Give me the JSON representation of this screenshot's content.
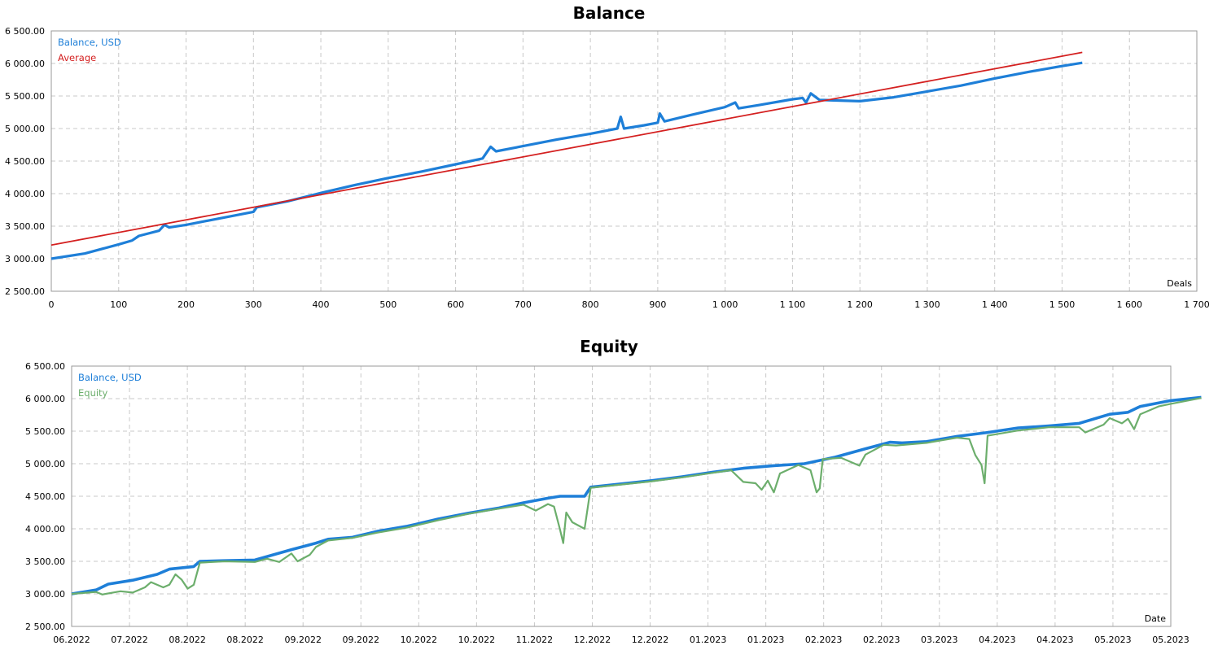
{
  "chart_data": [
    {
      "type": "line",
      "title": "Balance",
      "xlabel": "Deals",
      "ylabel": "",
      "xlim": [
        0,
        1700
      ],
      "ylim": [
        2500,
        6500
      ],
      "x_ticks": [
        "0",
        "100",
        "200",
        "300",
        "400",
        "500",
        "600",
        "700",
        "800",
        "900",
        "1 000",
        "1 100",
        "1 200",
        "1 300",
        "1 400",
        "1 500",
        "1 600",
        "1 700"
      ],
      "y_ticks": [
        "2 500.00",
        "3 000.00",
        "3 500.00",
        "4 000.00",
        "4 500.00",
        "5 000.00",
        "5 500.00",
        "6 000.00",
        "6 500.00"
      ],
      "grid": true,
      "legend_position": "top-left",
      "series": [
        {
          "name": "Balance, USD",
          "color": "#1e7fd8",
          "points": [
            [
              0,
              3000
            ],
            [
              50,
              3080
            ],
            [
              100,
              3220
            ],
            [
              120,
              3280
            ],
            [
              130,
              3350
            ],
            [
              160,
              3430
            ],
            [
              168,
              3520
            ],
            [
              175,
              3480
            ],
            [
              200,
              3520
            ],
            [
              250,
              3620
            ],
            [
              300,
              3720
            ],
            [
              305,
              3790
            ],
            [
              350,
              3880
            ],
            [
              400,
              4010
            ],
            [
              450,
              4130
            ],
            [
              500,
              4240
            ],
            [
              550,
              4340
            ],
            [
              600,
              4450
            ],
            [
              640,
              4540
            ],
            [
              652,
              4720
            ],
            [
              660,
              4650
            ],
            [
              700,
              4730
            ],
            [
              750,
              4830
            ],
            [
              800,
              4920
            ],
            [
              840,
              5000
            ],
            [
              845,
              5180
            ],
            [
              850,
              5000
            ],
            [
              880,
              5050
            ],
            [
              900,
              5090
            ],
            [
              903,
              5230
            ],
            [
              910,
              5110
            ],
            [
              950,
              5210
            ],
            [
              1000,
              5330
            ],
            [
              1015,
              5400
            ],
            [
              1020,
              5310
            ],
            [
              1050,
              5360
            ],
            [
              1100,
              5450
            ],
            [
              1115,
              5470
            ],
            [
              1120,
              5400
            ],
            [
              1127,
              5540
            ],
            [
              1140,
              5440
            ],
            [
              1200,
              5420
            ],
            [
              1250,
              5480
            ],
            [
              1300,
              5570
            ],
            [
              1350,
              5660
            ],
            [
              1400,
              5770
            ],
            [
              1450,
              5870
            ],
            [
              1500,
              5960
            ],
            [
              1530,
              6010
            ]
          ]
        },
        {
          "name": "Average",
          "color": "#d42020",
          "points": [
            [
              0,
              3210
            ],
            [
              1530,
              6170
            ]
          ]
        }
      ]
    },
    {
      "type": "line",
      "title": "Equity",
      "xlabel": "Date",
      "ylabel": "",
      "xlim": [
        0,
        18
      ],
      "ylim": [
        2500,
        6500
      ],
      "x_ticks": [
        "06.2022",
        "07.2022",
        "08.2022",
        "08.2022",
        "09.2022",
        "09.2022",
        "10.2022",
        "10.2022",
        "11.2022",
        "12.2022",
        "12.2022",
        "01.2023",
        "01.2023",
        "02.2023",
        "02.2023",
        "03.2023",
        "04.2023",
        "04.2023",
        "05.2023",
        "05.2023"
      ],
      "y_ticks": [
        "2 500.00",
        "3 000.00",
        "3 500.00",
        "4 000.00",
        "4 500.00",
        "5 000.00",
        "5 500.00",
        "6 000.00",
        "6 500.00"
      ],
      "grid": true,
      "legend_position": "top-left",
      "series": [
        {
          "name": "Balance, USD",
          "color": "#1e7fd8",
          "points": [
            [
              0,
              3000
            ],
            [
              0.4,
              3060
            ],
            [
              0.6,
              3150
            ],
            [
              1.0,
              3210
            ],
            [
              1.4,
              3300
            ],
            [
              1.6,
              3380
            ],
            [
              2.0,
              3420
            ],
            [
              2.1,
              3500
            ],
            [
              2.5,
              3510
            ],
            [
              3.0,
              3520
            ],
            [
              3.3,
              3600
            ],
            [
              3.6,
              3680
            ],
            [
              4.0,
              3780
            ],
            [
              4.2,
              3840
            ],
            [
              4.6,
              3870
            ],
            [
              5.0,
              3960
            ],
            [
              5.5,
              4040
            ],
            [
              6.0,
              4150
            ],
            [
              6.5,
              4240
            ],
            [
              7.0,
              4320
            ],
            [
              7.4,
              4400
            ],
            [
              7.8,
              4470
            ],
            [
              8.0,
              4500
            ],
            [
              8.4,
              4500
            ],
            [
              8.5,
              4640
            ],
            [
              9.0,
              4690
            ],
            [
              9.5,
              4740
            ],
            [
              10.0,
              4800
            ],
            [
              10.5,
              4870
            ],
            [
              11.0,
              4930
            ],
            [
              11.5,
              4970
            ],
            [
              12.0,
              5000
            ],
            [
              12.5,
              5100
            ],
            [
              13.0,
              5230
            ],
            [
              13.4,
              5330
            ],
            [
              13.6,
              5320
            ],
            [
              14.0,
              5340
            ],
            [
              14.5,
              5420
            ],
            [
              15.0,
              5480
            ],
            [
              15.5,
              5550
            ],
            [
              16.0,
              5580
            ],
            [
              16.5,
              5620
            ],
            [
              17.0,
              5760
            ],
            [
              17.3,
              5790
            ],
            [
              17.5,
              5880
            ],
            [
              18.0,
              5970
            ],
            [
              18.5,
              6020
            ]
          ]
        },
        {
          "name": "Equity",
          "color": "#6cae6c",
          "points": [
            [
              0,
              3000
            ],
            [
              0.4,
              3030
            ],
            [
              0.5,
              2990
            ],
            [
              0.8,
              3040
            ],
            [
              1.0,
              3020
            ],
            [
              1.2,
              3100
            ],
            [
              1.3,
              3180
            ],
            [
              1.5,
              3100
            ],
            [
              1.6,
              3140
            ],
            [
              1.7,
              3300
            ],
            [
              1.8,
              3220
            ],
            [
              1.9,
              3080
            ],
            [
              2.0,
              3140
            ],
            [
              2.1,
              3480
            ],
            [
              2.5,
              3500
            ],
            [
              3.0,
              3490
            ],
            [
              3.2,
              3540
            ],
            [
              3.4,
              3490
            ],
            [
              3.6,
              3620
            ],
            [
              3.7,
              3500
            ],
            [
              3.9,
              3600
            ],
            [
              4.0,
              3720
            ],
            [
              4.2,
              3820
            ],
            [
              4.6,
              3860
            ],
            [
              5.0,
              3940
            ],
            [
              5.5,
              4020
            ],
            [
              6.0,
              4130
            ],
            [
              6.5,
              4230
            ],
            [
              7.0,
              4310
            ],
            [
              7.4,
              4370
            ],
            [
              7.6,
              4280
            ],
            [
              7.8,
              4380
            ],
            [
              7.9,
              4340
            ],
            [
              8.0,
              3980
            ],
            [
              8.05,
              3780
            ],
            [
              8.1,
              4250
            ],
            [
              8.2,
              4100
            ],
            [
              8.4,
              4000
            ],
            [
              8.5,
              4630
            ],
            [
              9.0,
              4680
            ],
            [
              9.5,
              4730
            ],
            [
              10.0,
              4790
            ],
            [
              10.5,
              4860
            ],
            [
              10.8,
              4900
            ],
            [
              11.0,
              4720
            ],
            [
              11.2,
              4700
            ],
            [
              11.3,
              4600
            ],
            [
              11.4,
              4740
            ],
            [
              11.5,
              4560
            ],
            [
              11.6,
              4850
            ],
            [
              11.9,
              4980
            ],
            [
              12.1,
              4900
            ],
            [
              12.2,
              4560
            ],
            [
              12.25,
              4620
            ],
            [
              12.3,
              5070
            ],
            [
              12.6,
              5090
            ],
            [
              12.9,
              4970
            ],
            [
              13.0,
              5140
            ],
            [
              13.3,
              5290
            ],
            [
              13.5,
              5280
            ],
            [
              14.0,
              5320
            ],
            [
              14.5,
              5400
            ],
            [
              14.7,
              5380
            ],
            [
              14.8,
              5130
            ],
            [
              14.9,
              4980
            ],
            [
              14.95,
              4700
            ],
            [
              15.0,
              5430
            ],
            [
              15.5,
              5510
            ],
            [
              16.0,
              5560
            ],
            [
              16.5,
              5560
            ],
            [
              16.6,
              5480
            ],
            [
              16.9,
              5600
            ],
            [
              17.0,
              5700
            ],
            [
              17.2,
              5620
            ],
            [
              17.3,
              5690
            ],
            [
              17.4,
              5530
            ],
            [
              17.5,
              5760
            ],
            [
              17.8,
              5880
            ],
            [
              18.0,
              5920
            ],
            [
              18.5,
              6010
            ]
          ]
        }
      ]
    }
  ]
}
